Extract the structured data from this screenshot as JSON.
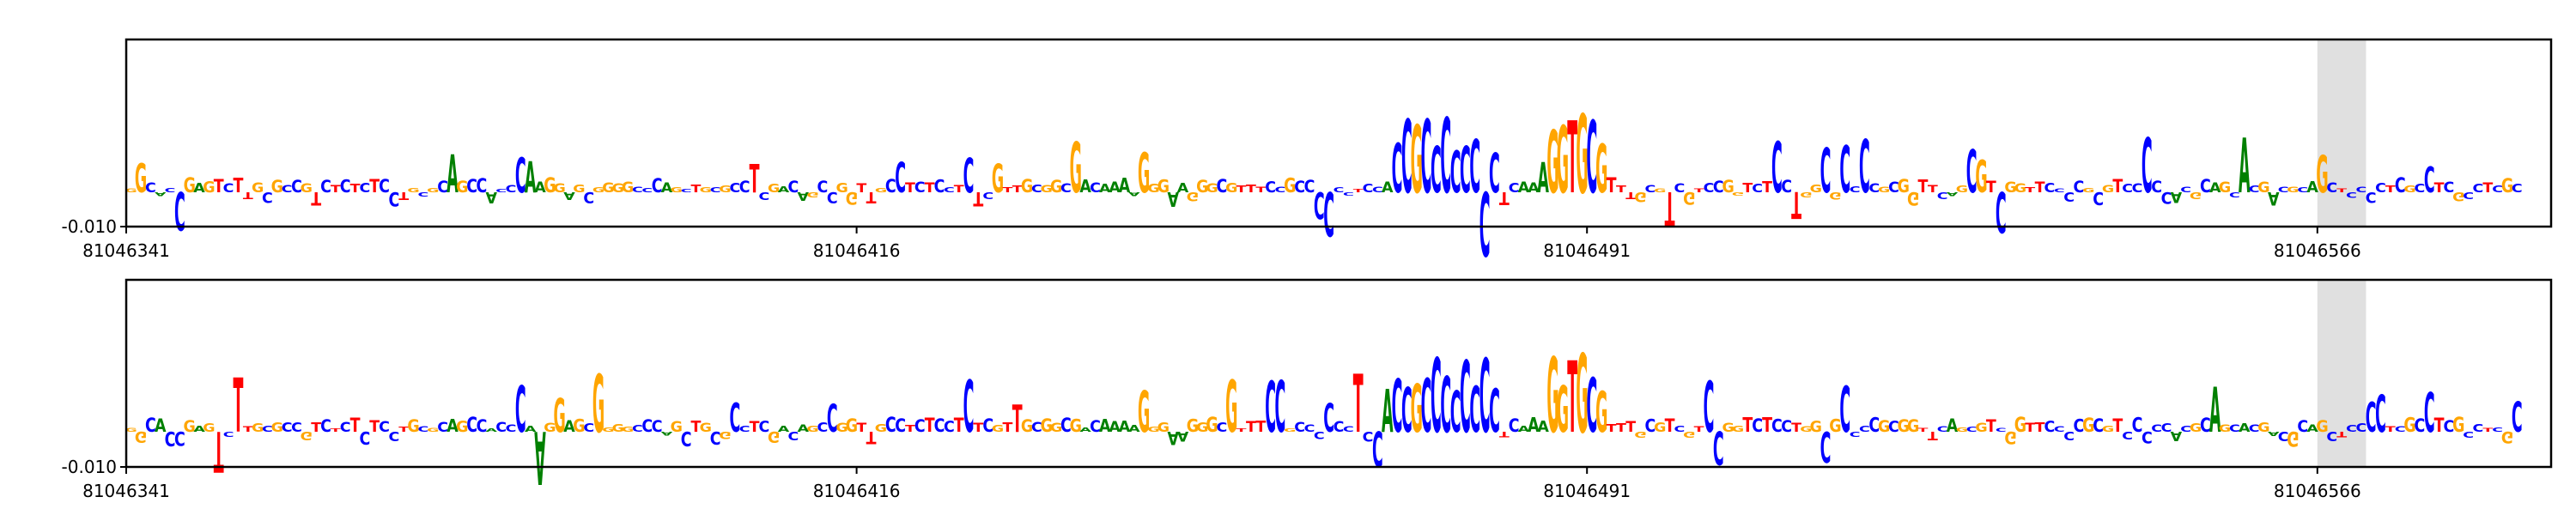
{
  "chart_data": [
    {
      "type": "sequence-logo",
      "panel": "top",
      "xlim": [
        81046341,
        81046590
      ],
      "xticks": [
        81046341,
        81046416,
        81046491,
        81046566
      ],
      "ytick_label": "-0.010",
      "highlight": [
        81046566,
        81046571
      ]
    },
    {
      "type": "sequence-logo",
      "panel": "bottom",
      "xlim": [
        81046341,
        81046590
      ],
      "xticks": [
        81046341,
        81046416,
        81046491,
        81046566
      ],
      "ytick_label": "-0.010",
      "highlight": [
        81046566,
        81046571
      ]
    }
  ],
  "sequence": {
    "top": "GGCACCGAGTCTTGCGCCGTCTCTCTCCTGCGCAGCCACCCAAGGAGCGGGGCCCAGCTGCGCCTCGACAGCCGGTTGCCTCTCCTCTCGTTGCGGCGACAAAAGGGAAGGGCGTTTCCGCCCCCCTCCACCGCCCCCCCCTCAAAGGTGCGTTTGCGTCGTCCGGTCTCCTGGCGCCCCGCGGTTCAGCGTCGGTTCCCCGCGTCCCCCACGCAGCACGACGCAGCTCCCCTCGCCTCGCCTCGC",
    "bottom": "GGCACCGAGTCTTGCGCCGTCTCTCTCCTGCGCAGCCACCCAAGGAGCGGGGCCCAGCTGCGCCTCGACAGCCGGTTGCCTCTCCTCTCGTTGCGGCGACAAAAGGGAAGGGCGTTTCCGCCCCCCTCCACCGCCCCCCCCTCAAAGGTGCGTTTGCGTCGTCCGGTCTCCTGGCGCCCCGCGGTTCAGCGTCGGTTCCCCGCGTCCCCCACGCAGCACGACGCAGCTCCCCTCGCCTCGCCTCGC"
  },
  "colors": {
    "A": "#008000",
    "C": "#0000ff",
    "G": "#ffa500",
    "T": "#ff0000",
    "highlight": "#e0e0e0",
    "axis": "#000000"
  }
}
